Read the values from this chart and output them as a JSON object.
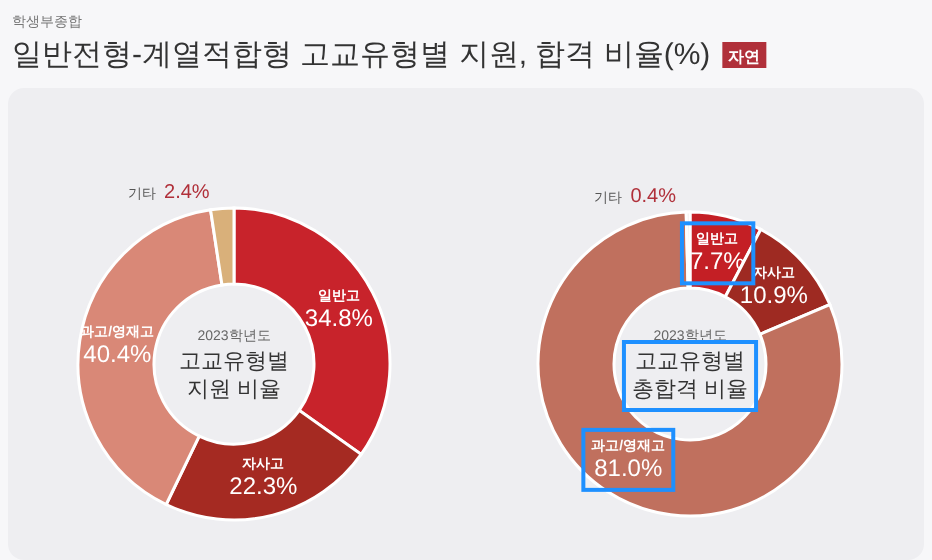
{
  "chart_data": [
    {
      "type": "donut",
      "subtitle": "학생부종합",
      "title": "일반전형-계열적합형 고교유형별 지원, 합격 비율(%)",
      "annotations": [
        "자연",
        "2023학년도",
        "고교유형별",
        "지원 비율"
      ],
      "categories": [
        "일반고",
        "자사고",
        "과고/영재고",
        "기타"
      ],
      "values": [
        34.8,
        22.3,
        40.4,
        2.4
      ],
      "value_labels": [
        "34.8%",
        "22.3%",
        "40.4%",
        "2.4%"
      ],
      "colors": [
        "#c8232b",
        "#a52a22",
        "#d98877",
        "#d9b07a"
      ]
    },
    {
      "type": "donut",
      "annotations": [
        "2023학년도",
        "고교유형별",
        "총합격 비율"
      ],
      "categories": [
        "일반고",
        "자사고",
        "과고/영재고",
        "기타"
      ],
      "values": [
        7.7,
        10.9,
        81.0,
        0.4
      ],
      "value_labels": [
        "7.7%",
        "10.9%",
        "81.0%",
        "0.4%"
      ],
      "colors": [
        "#c41f25",
        "#9e2a22",
        "#c0705e",
        "#eee6e4"
      ]
    }
  ]
}
